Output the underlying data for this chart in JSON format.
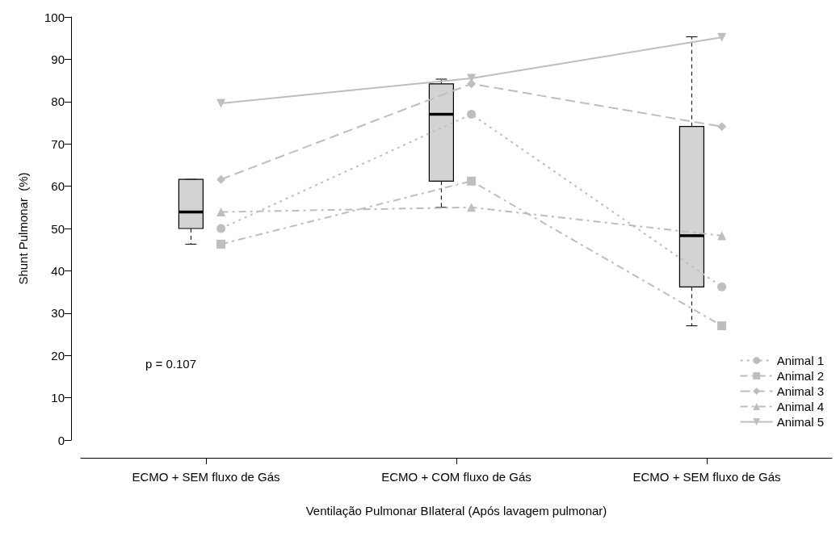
{
  "chart_data": {
    "type": "box",
    "xlabel": "Ventilação Pulmonar BIlateral (Após lavagem pulmonar)",
    "ylabel": "Shunt Pulmonar  (%)",
    "categories": [
      "ECMO + SEM fluxo de Gás",
      "ECMO + COM fluxo de Gás",
      "ECMO + SEM fluxo de Gás"
    ],
    "boxes": [
      {
        "low": 46.3,
        "q1": 50.0,
        "median": 53.9,
        "q3": 61.6,
        "high": 61.6
      },
      {
        "low": 55.0,
        "q1": 61.2,
        "median": 77.0,
        "q3": 84.2,
        "high": 85.3
      },
      {
        "low": 27.0,
        "q1": 36.2,
        "median": 48.3,
        "q3": 74.1,
        "high": 95.3
      }
    ],
    "color": "#d3d3d3",
    "series": [
      {
        "type": "line",
        "name": "Animal 1",
        "color": "#bebebe",
        "marker": "circle",
        "line_style": "dotted",
        "values": [
          50.0,
          77.0,
          36.2
        ]
      },
      {
        "type": "line",
        "name": "Animal 2",
        "color": "#bebebe",
        "marker": "square",
        "line_style": "dashdot",
        "values": [
          46.3,
          61.2,
          27.0
        ]
      },
      {
        "type": "line",
        "name": "Animal 3",
        "color": "#bebebe",
        "marker": "diamond",
        "line_style": "dashed",
        "values": [
          61.6,
          84.2,
          74.1
        ]
      },
      {
        "type": "line",
        "name": "Animal 4",
        "color": "#bebebe",
        "marker": "triangle",
        "line_style": "dashdot",
        "values": [
          53.9,
          55.0,
          48.3
        ]
      },
      {
        "type": "line",
        "name": "Animal 5",
        "color": "#bebebe",
        "marker": "triangle-down",
        "line_style": "solid",
        "values": [
          79.6,
          85.5,
          95.2
        ]
      }
    ],
    "ylim": [
      0,
      100
    ],
    "yticks": [
      0,
      10,
      20,
      30,
      40,
      50,
      60,
      70,
      80,
      90,
      100
    ],
    "annotations": [
      "p = 0.107"
    ],
    "legend": "bottom right",
    "grid": false
  }
}
